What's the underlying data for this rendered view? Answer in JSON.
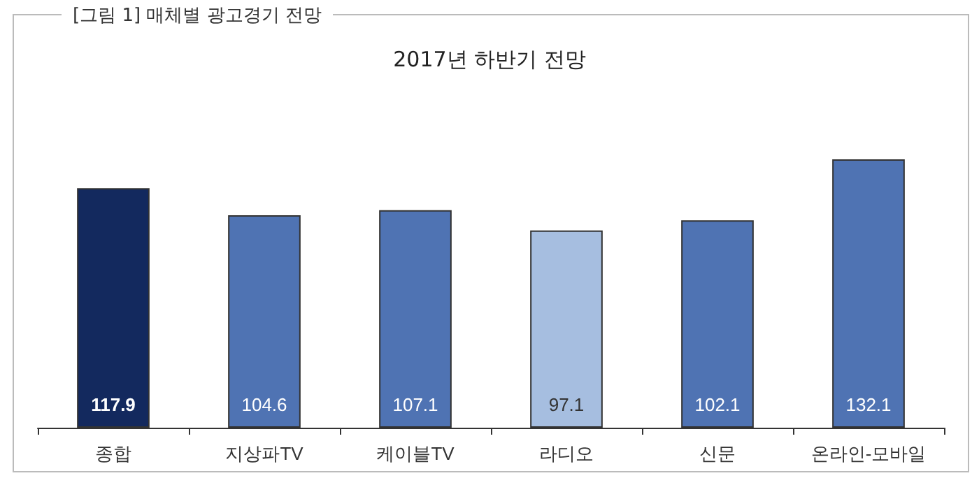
{
  "chart_data": {
    "type": "bar",
    "title": "[그림 1] 매체별 광고경기 전망",
    "subtitle": "2017년 하반기 전망",
    "categories": [
      "종합",
      "지상파TV",
      "케이블TV",
      "라디오",
      "신문",
      "온라인-모바일"
    ],
    "values": [
      117.9,
      104.6,
      107.1,
      97.1,
      102.1,
      132.1
    ],
    "colors": [
      "#13295e",
      "#4f73b3",
      "#4f73b3",
      "#a6bee0",
      "#4f73b3",
      "#4f73b3"
    ],
    "tick_labels": "x",
    "data_labels": true
  }
}
